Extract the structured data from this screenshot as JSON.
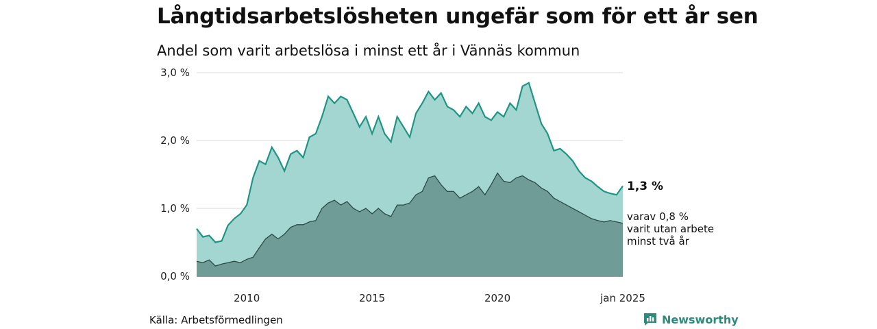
{
  "header": {
    "title": "Långtidsarbetslösheten ungefär som för ett år sen",
    "subtitle": "Andel som varit arbetslösa i minst ett år i Vännäs kommun"
  },
  "footer": {
    "source": "Källa: Arbetsförmedlingen",
    "brand": "Newsworthy"
  },
  "colors": {
    "series_long_line": "#1f9484",
    "series_long_fill": "#a3d6d0",
    "series_2y_line": "#2c4a44",
    "series_2y_fill": "#6f9c96",
    "grid": "#d9d9d9"
  },
  "chart_data": {
    "type": "area",
    "x_start": "2008-01",
    "x_end": "2025-01",
    "xlim": [
      "2008-01",
      "2025-01"
    ],
    "ylim": [
      0,
      3.0
    ],
    "y_ticks": [
      0.0,
      1.0,
      2.0,
      3.0
    ],
    "y_tick_labels": [
      "0,0 %",
      "1,0 %",
      "2,0 %",
      "3,0 %"
    ],
    "x_ticks": [
      "2010-01",
      "2015-01",
      "2020-01",
      "2025-01"
    ],
    "x_tick_labels": [
      "2010",
      "2015",
      "2020",
      "jan 2025"
    ],
    "grid": true,
    "series": [
      {
        "key": "long",
        "points": [
          [
            "2008-01",
            0.7
          ],
          [
            "2008-04",
            0.58
          ],
          [
            "2008-07",
            0.6
          ],
          [
            "2008-10",
            0.5
          ],
          [
            "2009-01",
            0.52
          ],
          [
            "2009-04",
            0.75
          ],
          [
            "2009-07",
            0.85
          ],
          [
            "2009-10",
            0.92
          ],
          [
            "2010-01",
            1.05
          ],
          [
            "2010-04",
            1.45
          ],
          [
            "2010-07",
            1.7
          ],
          [
            "2010-10",
            1.65
          ],
          [
            "2011-01",
            1.9
          ],
          [
            "2011-04",
            1.75
          ],
          [
            "2011-07",
            1.55
          ],
          [
            "2011-10",
            1.8
          ],
          [
            "2012-01",
            1.85
          ],
          [
            "2012-04",
            1.75
          ],
          [
            "2012-07",
            2.05
          ],
          [
            "2012-10",
            2.1
          ],
          [
            "2013-01",
            2.35
          ],
          [
            "2013-04",
            2.65
          ],
          [
            "2013-07",
            2.55
          ],
          [
            "2013-10",
            2.65
          ],
          [
            "2014-01",
            2.6
          ],
          [
            "2014-04",
            2.4
          ],
          [
            "2014-07",
            2.2
          ],
          [
            "2014-10",
            2.35
          ],
          [
            "2015-01",
            2.1
          ],
          [
            "2015-04",
            2.35
          ],
          [
            "2015-07",
            2.1
          ],
          [
            "2015-10",
            1.98
          ],
          [
            "2016-01",
            2.35
          ],
          [
            "2016-04",
            2.2
          ],
          [
            "2016-07",
            2.05
          ],
          [
            "2016-10",
            2.4
          ],
          [
            "2017-01",
            2.55
          ],
          [
            "2017-04",
            2.72
          ],
          [
            "2017-07",
            2.6
          ],
          [
            "2017-10",
            2.7
          ],
          [
            "2018-01",
            2.5
          ],
          [
            "2018-04",
            2.45
          ],
          [
            "2018-07",
            2.35
          ],
          [
            "2018-10",
            2.5
          ],
          [
            "2019-01",
            2.4
          ],
          [
            "2019-04",
            2.55
          ],
          [
            "2019-07",
            2.35
          ],
          [
            "2019-10",
            2.3
          ],
          [
            "2020-01",
            2.42
          ],
          [
            "2020-04",
            2.35
          ],
          [
            "2020-07",
            2.55
          ],
          [
            "2020-10",
            2.45
          ],
          [
            "2021-01",
            2.8
          ],
          [
            "2021-04",
            2.85
          ],
          [
            "2021-07",
            2.55
          ],
          [
            "2021-10",
            2.25
          ],
          [
            "2022-01",
            2.1
          ],
          [
            "2022-04",
            1.85
          ],
          [
            "2022-07",
            1.88
          ],
          [
            "2022-10",
            1.8
          ],
          [
            "2023-01",
            1.7
          ],
          [
            "2023-04",
            1.55
          ],
          [
            "2023-07",
            1.45
          ],
          [
            "2023-10",
            1.4
          ],
          [
            "2024-01",
            1.32
          ],
          [
            "2024-04",
            1.25
          ],
          [
            "2024-07",
            1.22
          ],
          [
            "2024-10",
            1.2
          ],
          [
            "2025-01",
            1.33
          ]
        ]
      },
      {
        "key": "twoyear",
        "points": [
          [
            "2008-01",
            0.22
          ],
          [
            "2008-04",
            0.2
          ],
          [
            "2008-07",
            0.24
          ],
          [
            "2008-10",
            0.15
          ],
          [
            "2009-01",
            0.18
          ],
          [
            "2009-04",
            0.2
          ],
          [
            "2009-07",
            0.22
          ],
          [
            "2009-10",
            0.2
          ],
          [
            "2010-01",
            0.25
          ],
          [
            "2010-04",
            0.28
          ],
          [
            "2010-07",
            0.42
          ],
          [
            "2010-10",
            0.55
          ],
          [
            "2011-01",
            0.62
          ],
          [
            "2011-04",
            0.55
          ],
          [
            "2011-07",
            0.62
          ],
          [
            "2011-10",
            0.72
          ],
          [
            "2012-01",
            0.76
          ],
          [
            "2012-04",
            0.76
          ],
          [
            "2012-07",
            0.8
          ],
          [
            "2012-10",
            0.82
          ],
          [
            "2013-01",
            1.0
          ],
          [
            "2013-04",
            1.08
          ],
          [
            "2013-07",
            1.12
          ],
          [
            "2013-10",
            1.05
          ],
          [
            "2014-01",
            1.1
          ],
          [
            "2014-04",
            1.0
          ],
          [
            "2014-07",
            0.95
          ],
          [
            "2014-10",
            1.0
          ],
          [
            "2015-01",
            0.92
          ],
          [
            "2015-04",
            1.0
          ],
          [
            "2015-07",
            0.92
          ],
          [
            "2015-10",
            0.88
          ],
          [
            "2016-01",
            1.05
          ],
          [
            "2016-04",
            1.05
          ],
          [
            "2016-07",
            1.08
          ],
          [
            "2016-10",
            1.2
          ],
          [
            "2017-01",
            1.25
          ],
          [
            "2017-04",
            1.45
          ],
          [
            "2017-07",
            1.48
          ],
          [
            "2017-10",
            1.35
          ],
          [
            "2018-01",
            1.25
          ],
          [
            "2018-04",
            1.25
          ],
          [
            "2018-07",
            1.15
          ],
          [
            "2018-10",
            1.2
          ],
          [
            "2019-01",
            1.25
          ],
          [
            "2019-04",
            1.32
          ],
          [
            "2019-07",
            1.2
          ],
          [
            "2019-10",
            1.35
          ],
          [
            "2020-01",
            1.52
          ],
          [
            "2020-04",
            1.4
          ],
          [
            "2020-07",
            1.38
          ],
          [
            "2020-10",
            1.45
          ],
          [
            "2021-01",
            1.48
          ],
          [
            "2021-04",
            1.42
          ],
          [
            "2021-07",
            1.38
          ],
          [
            "2021-10",
            1.3
          ],
          [
            "2022-01",
            1.25
          ],
          [
            "2022-04",
            1.15
          ],
          [
            "2022-07",
            1.1
          ],
          [
            "2022-10",
            1.05
          ],
          [
            "2023-01",
            1.0
          ],
          [
            "2023-04",
            0.95
          ],
          [
            "2023-07",
            0.9
          ],
          [
            "2023-10",
            0.85
          ],
          [
            "2024-01",
            0.82
          ],
          [
            "2024-04",
            0.8
          ],
          [
            "2024-07",
            0.82
          ],
          [
            "2024-10",
            0.8
          ],
          [
            "2025-01",
            0.78
          ]
        ]
      }
    ],
    "annotations": {
      "last_value": "1,3 %",
      "sub_line1": "varav 0,8 %",
      "sub_line2": "varit utan arbete",
      "sub_line3": "minst två år"
    }
  }
}
